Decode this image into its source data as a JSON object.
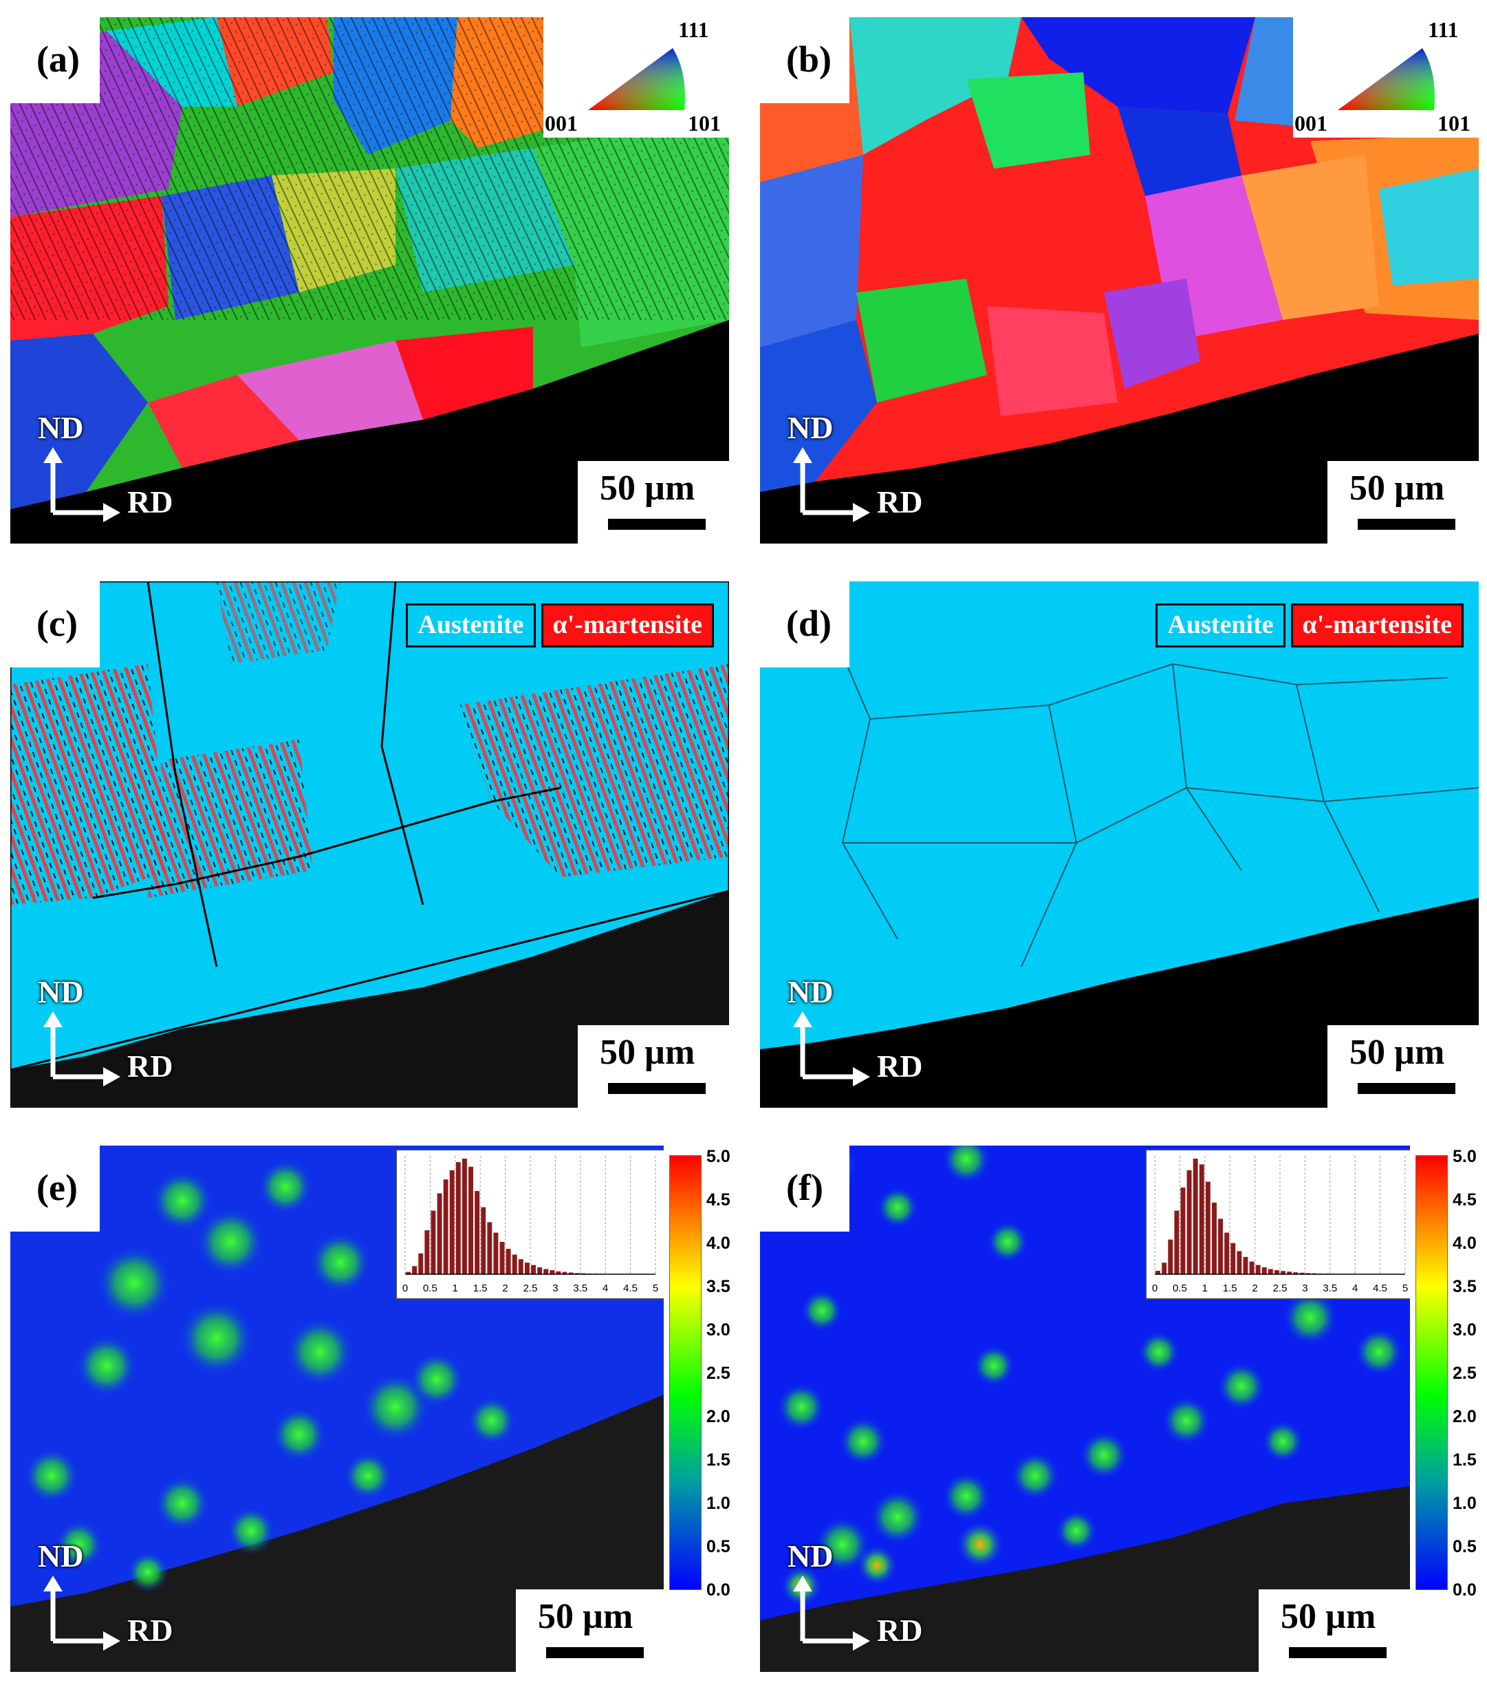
{
  "panels": {
    "a": {
      "label": "(a)",
      "scale": "50 µm",
      "nd": "ND",
      "rd": "RD"
    },
    "b": {
      "label": "(b)",
      "scale": "50 µm",
      "nd": "ND",
      "rd": "RD"
    },
    "c": {
      "label": "(c)",
      "scale": "50 µm",
      "nd": "ND",
      "rd": "RD"
    },
    "d": {
      "label": "(d)",
      "scale": "50 µm",
      "nd": "ND",
      "rd": "RD"
    },
    "e": {
      "label": "(e)",
      "scale": "50 µm",
      "nd": "ND",
      "rd": "RD"
    },
    "f": {
      "label": "(f)",
      "scale": "50 µm",
      "nd": "ND",
      "rd": "RD"
    }
  },
  "ipf_legend": {
    "top": "111",
    "left": "001",
    "right": "101"
  },
  "phase_legend": {
    "austenite": "Austenite",
    "martensite": "α'-martensite",
    "austenite_color": "#00ccf5",
    "martensite_color": "#ff1010"
  },
  "colorbar": {
    "ticks": [
      "5.0",
      "4.5",
      "4.0",
      "3.5",
      "3.0",
      "2.5",
      "2.0",
      "1.5",
      "1.0",
      "0.5",
      "0.0"
    ]
  },
  "chart_data": [
    {
      "type": "bar",
      "panel": "e",
      "x_ticks": [
        "0",
        "0.5",
        "1",
        "1.5",
        "2",
        "2.5",
        "3",
        "3.5",
        "4",
        "4.5",
        "5"
      ],
      "x_range": [
        0,
        5
      ],
      "values": [
        0.02,
        0.07,
        0.18,
        0.38,
        0.55,
        0.7,
        0.82,
        0.9,
        0.97,
        1.0,
        0.93,
        0.72,
        0.58,
        0.45,
        0.36,
        0.28,
        0.22,
        0.17,
        0.13,
        0.1,
        0.08,
        0.06,
        0.045,
        0.035,
        0.025,
        0.02,
        0.015,
        0.01,
        0.008,
        0.006,
        0.005,
        0.004,
        0.003,
        0.002,
        0.002,
        0.001,
        0.001,
        0.001,
        0.001,
        0.001
      ],
      "color": "#8b1a1a"
    },
    {
      "type": "bar",
      "panel": "f",
      "x_ticks": [
        "0",
        "0.5",
        "1",
        "1.5",
        "2",
        "2.5",
        "3",
        "3.5",
        "4",
        "4.5",
        "5"
      ],
      "x_range": [
        0,
        5
      ],
      "values": [
        0.03,
        0.1,
        0.3,
        0.55,
        0.75,
        0.9,
        1.0,
        0.95,
        0.8,
        0.62,
        0.48,
        0.36,
        0.27,
        0.2,
        0.15,
        0.11,
        0.08,
        0.06,
        0.045,
        0.035,
        0.028,
        0.022,
        0.017,
        0.013,
        0.01,
        0.008,
        0.006,
        0.005,
        0.004,
        0.003,
        0.003,
        0.002,
        0.002,
        0.002,
        0.001,
        0.001,
        0.001,
        0.001,
        0.001,
        0.001
      ],
      "color": "#8b1a1a"
    }
  ]
}
